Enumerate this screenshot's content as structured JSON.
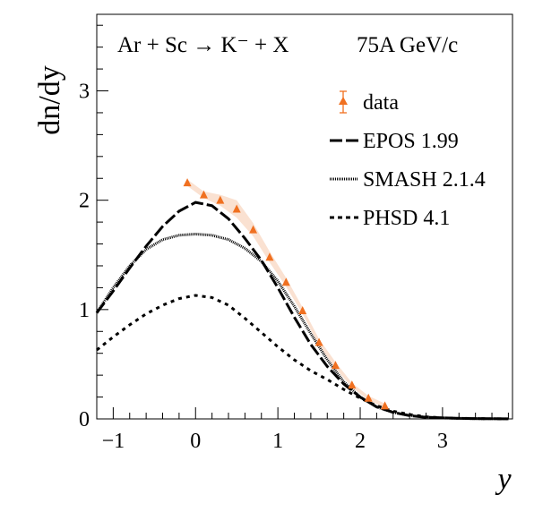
{
  "chart_data": {
    "type": "line",
    "title": "Ar + Sc → K⁻ + X",
    "energy_label": "75A GeV/c",
    "xlabel": "y",
    "ylabel": "dn/dy",
    "xlim": [
      -1.2,
      3.85
    ],
    "ylim": [
      0,
      3.7
    ],
    "x_ticks": [
      -1,
      0,
      1,
      2,
      3
    ],
    "y_ticks": [
      0,
      1,
      2,
      3
    ],
    "grid": false,
    "legend_position": "top-right",
    "series": [
      {
        "name": "data",
        "style": "markers",
        "color": "#f07020",
        "x": [
          -0.1,
          0.1,
          0.3,
          0.5,
          0.7,
          0.9,
          1.1,
          1.3,
          1.5,
          1.7,
          1.9,
          2.1,
          2.3
        ],
        "y": [
          2.16,
          2.05,
          2.0,
          1.92,
          1.73,
          1.48,
          1.25,
          0.99,
          0.7,
          0.49,
          0.31,
          0.19,
          0.12
        ],
        "err": [
          0.03,
          0.03,
          0.05,
          0.08,
          0.06,
          0.05,
          0.04,
          0.03,
          0.03,
          0.03,
          0.02,
          0.02,
          0.02
        ]
      },
      {
        "name": "EPOS 1.99",
        "style": "long-dash",
        "color": "#000000",
        "x": [
          -1.2,
          -1.0,
          -0.8,
          -0.6,
          -0.4,
          -0.2,
          0.0,
          0.2,
          0.4,
          0.6,
          0.8,
          1.0,
          1.2,
          1.4,
          1.6,
          1.8,
          2.0,
          2.2,
          2.4,
          2.6,
          2.8,
          3.0,
          3.2,
          3.4,
          3.6,
          3.8
        ],
        "y": [
          0.97,
          1.17,
          1.38,
          1.58,
          1.76,
          1.9,
          1.98,
          1.95,
          1.83,
          1.65,
          1.45,
          1.2,
          0.93,
          0.68,
          0.48,
          0.32,
          0.2,
          0.11,
          0.06,
          0.03,
          0.015,
          0.01,
          0.005,
          0.003,
          0.002,
          0.001
        ]
      },
      {
        "name": "SMASH 2.1.4",
        "style": "dotted",
        "color": "#000000",
        "x": [
          -1.2,
          -1.0,
          -0.8,
          -0.6,
          -0.4,
          -0.2,
          0.0,
          0.2,
          0.4,
          0.6,
          0.8,
          1.0,
          1.2,
          1.4,
          1.6,
          1.8,
          2.0,
          2.2,
          2.4,
          2.6,
          2.8,
          3.0,
          3.2,
          3.4,
          3.6,
          3.8
        ],
        "y": [
          0.97,
          1.2,
          1.4,
          1.55,
          1.64,
          1.68,
          1.69,
          1.68,
          1.64,
          1.56,
          1.44,
          1.26,
          1.03,
          0.78,
          0.54,
          0.34,
          0.2,
          0.11,
          0.06,
          0.03,
          0.015,
          0.008,
          0.004,
          0.002,
          0.001,
          0.0
        ]
      },
      {
        "name": "PHSD 4.1",
        "style": "short-dash",
        "color": "#000000",
        "x": [
          -1.2,
          -1.0,
          -0.8,
          -0.6,
          -0.4,
          -0.2,
          0.0,
          0.2,
          0.4,
          0.6,
          0.8,
          1.0,
          1.2,
          1.4,
          1.6,
          1.8,
          2.0,
          2.2,
          2.4,
          2.6,
          2.8,
          3.0,
          3.2,
          3.4,
          3.6,
          3.8
        ],
        "y": [
          0.63,
          0.75,
          0.86,
          0.96,
          1.04,
          1.1,
          1.13,
          1.11,
          1.04,
          0.92,
          0.79,
          0.66,
          0.54,
          0.44,
          0.36,
          0.27,
          0.19,
          0.12,
          0.07,
          0.04,
          0.02,
          0.01,
          0.006,
          0.003,
          0.002,
          0.001
        ]
      }
    ]
  }
}
